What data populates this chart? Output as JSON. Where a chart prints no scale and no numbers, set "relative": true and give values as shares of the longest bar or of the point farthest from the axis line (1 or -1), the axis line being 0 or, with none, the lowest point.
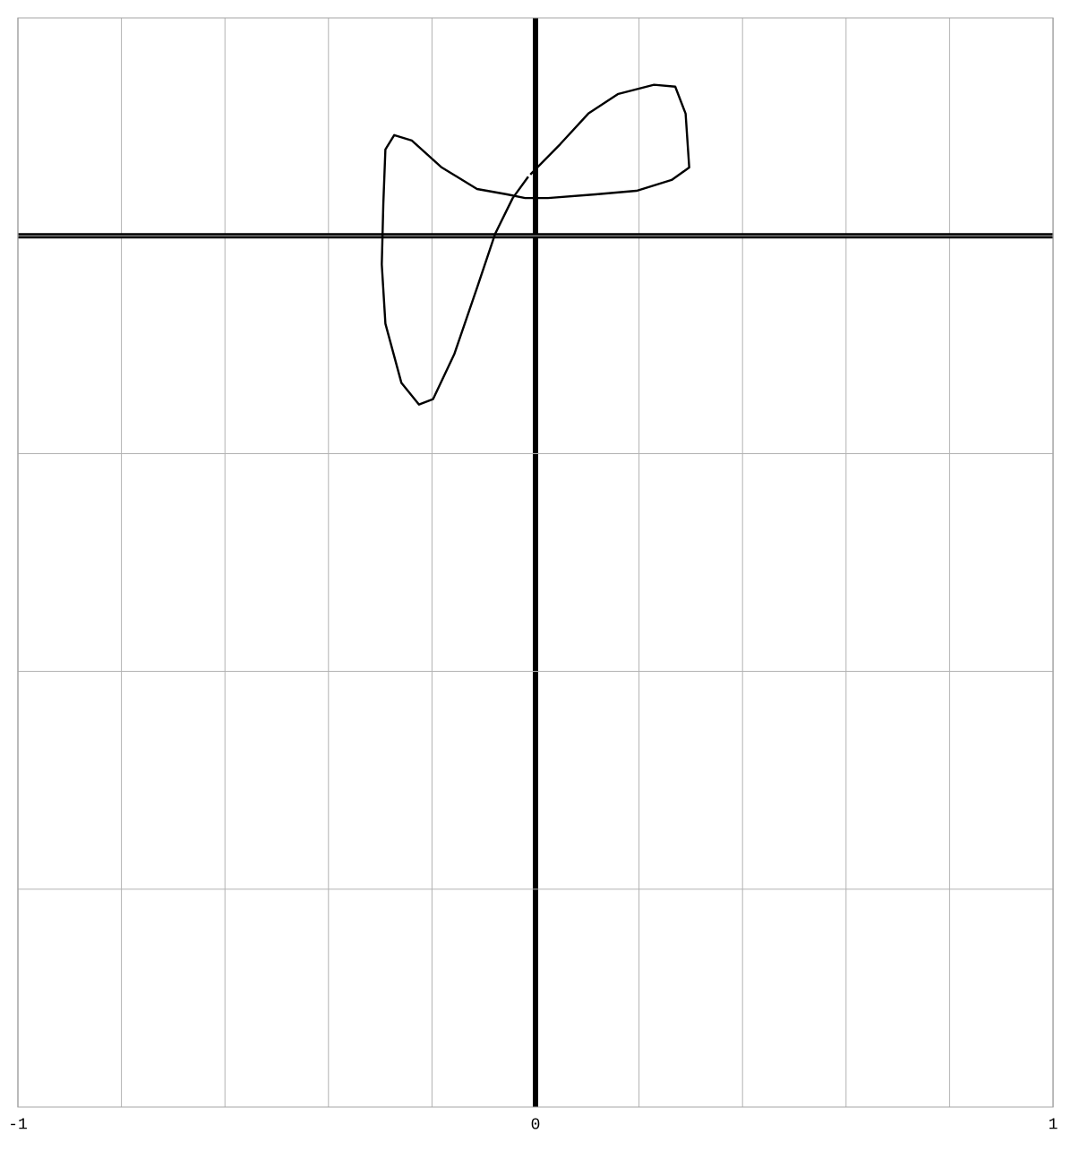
{
  "chart_data": {
    "type": "line",
    "relative": true,
    "xlim": [
      -1,
      1
    ],
    "xticks": [
      -1,
      {
        "value": -0.8,
        "label": null
      },
      {
        "value": -0.6,
        "label": null
      },
      {
        "value": -0.4,
        "label": null
      },
      {
        "value": -0.2,
        "label": null
      },
      0,
      {
        "value": 0.2,
        "label": null
      },
      {
        "value": 0.4,
        "label": null
      },
      {
        "value": 0.6,
        "label": null
      },
      {
        "value": 0.8,
        "label": null
      },
      1
    ],
    "tick_labels": "x",
    "grid": true,
    "marker": "none",
    "line_style": "solid",
    "series": [
      {
        "color": "#000000",
        "x": [
          -0.01,
          0.048,
          0.102,
          0.16,
          0.229,
          0.27,
          0.29,
          0.297,
          0.263,
          0.195,
          0.116,
          0.024,
          -0.02,
          -0.055,
          -0.113,
          -0.181,
          -0.239,
          -0.273,
          -0.29,
          -0.294,
          -0.297,
          -0.29,
          -0.259,
          -0.225,
          -0.198,
          -0.157,
          -0.113,
          -0.078,
          -0.044,
          -0.014
        ],
        "values": [
          0.362,
          0.543,
          0.723,
          0.84,
          0.894,
          0.883,
          0.723,
          0.404,
          0.33,
          0.266,
          0.245,
          0.223,
          0.223,
          0.245,
          0.277,
          0.404,
          0.564,
          0.596,
          0.511,
          0.191,
          -0.17,
          -0.521,
          -0.872,
          -1,
          -0.968,
          -0.702,
          -0.309,
          0.011,
          0.223,
          0.35
        ]
      }
    ]
  }
}
